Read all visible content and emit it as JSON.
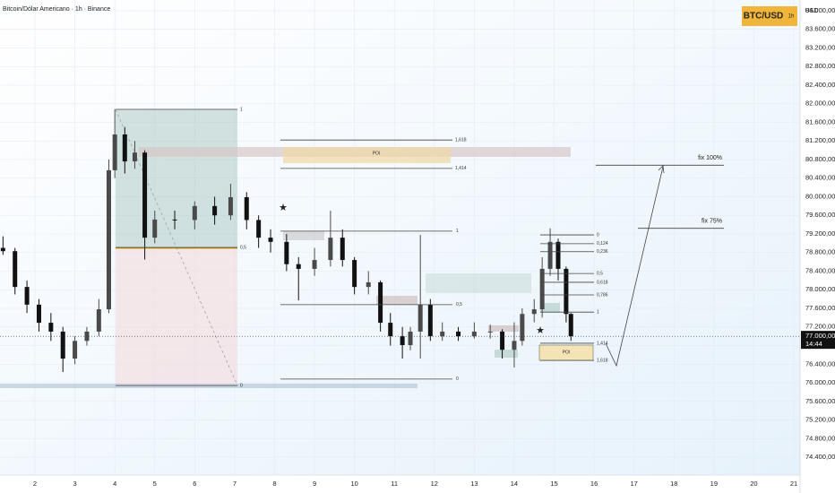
{
  "chart_data": {
    "type": "candlestick",
    "title": "Bitcoin/Dólar Americano · 1h · Binance",
    "symbol": "BTC/USD",
    "interval": "1h",
    "currency": "USD",
    "x": [
      1.2,
      1.5,
      1.8,
      2.1,
      2.4,
      2.7,
      3.0,
      3.3,
      3.6,
      3.85,
      4.0,
      4.25,
      4.5,
      4.75,
      5.0,
      5.5,
      6.0,
      6.5,
      6.9,
      7.3,
      7.6,
      7.9,
      8.3,
      8.6,
      9.0,
      9.4,
      9.7,
      10.0,
      10.35,
      10.65,
      10.9,
      11.2,
      11.4,
      11.65,
      11.9,
      12.2,
      12.6,
      13.0,
      13.4,
      13.7,
      14.0,
      14.2,
      14.5,
      14.7,
      14.9,
      15.1,
      15.3,
      15.42
    ],
    "open": [
      78900,
      78830,
      78060,
      77680,
      77290,
      77100,
      76520,
      76900,
      77100,
      77580,
      80570,
      81340,
      80760,
      80950,
      79120,
      79510,
      79500,
      79800,
      79600,
      79990,
      79500,
      79120,
      79030,
      78550,
      78450,
      78640,
      79120,
      78640,
      78060,
      78160,
      77290,
      77000,
      76810,
      77100,
      77680,
      77000,
      77100,
      77000,
      77100,
      77100,
      76710,
      76900,
      77480,
      77580,
      78450,
      79030,
      78450,
      77480
    ],
    "high": [
      79150,
      78900,
      78200,
      77800,
      77500,
      77200,
      77000,
      77200,
      77800,
      80800,
      81880,
      81500,
      81200,
      81000,
      79700,
      79700,
      79900,
      80000,
      80280,
      80100,
      79600,
      79300,
      79200,
      78700,
      78900,
      79700,
      79300,
      78700,
      78400,
      78200,
      77500,
      77200,
      77200,
      79180,
      77800,
      77300,
      77200,
      77300,
      77250,
      77150,
      77300,
      77600,
      77800,
      78700,
      79320,
      79100,
      78500,
      77500
    ],
    "low": [
      78750,
      77900,
      77500,
      77100,
      76900,
      76230,
      76400,
      76800,
      77000,
      77500,
      80400,
      80500,
      80600,
      78650,
      79000,
      79300,
      79300,
      79400,
      79500,
      79300,
      78900,
      78800,
      78400,
      77770,
      78300,
      78500,
      78500,
      77900,
      77900,
      77100,
      76800,
      76520,
      76700,
      76520,
      76900,
      76900,
      76900,
      76950,
      76950,
      76520,
      76330,
      76800,
      77300,
      77400,
      78300,
      78200,
      77300,
      76900
    ],
    "close": [
      78830,
      78060,
      77680,
      77290,
      77100,
      76520,
      76900,
      77100,
      77580,
      80570,
      81340,
      80760,
      80950,
      79120,
      79510,
      79500,
      79800,
      79600,
      79990,
      79500,
      79120,
      79030,
      78550,
      78450,
      78640,
      79120,
      78640,
      78060,
      78160,
      77290,
      77000,
      76810,
      77100,
      77680,
      77000,
      77100,
      77000,
      77100,
      77100,
      76710,
      76900,
      77480,
      77580,
      78450,
      79030,
      78450,
      77480,
      77000
    ],
    "up_color": "#4a4a4a",
    "down_color": "#111111",
    "xlim": [
      1.125,
      21.157
    ],
    "xticks": [
      2,
      3,
      4,
      5,
      6,
      7,
      8,
      9,
      10,
      11,
      12,
      13,
      14,
      15,
      16,
      17,
      18,
      19,
      20,
      21
    ],
    "ylim": [
      74015,
      84231
    ],
    "yticks": [
      {
        "value": 74400,
        "label": "74.400,00"
      },
      {
        "value": 74800,
        "label": "74.800,00"
      },
      {
        "value": 75200,
        "label": "75.200,00"
      },
      {
        "value": 75600,
        "label": "75.600,00"
      },
      {
        "value": 76000,
        "label": "76.000,00"
      },
      {
        "value": 76400,
        "label": "76.400,00"
      },
      {
        "value": 76800,
        "label": "76.800,00"
      },
      {
        "value": 77200,
        "label": "77.200,00"
      },
      {
        "value": 77600,
        "label": "77.600,00"
      },
      {
        "value": 78000,
        "label": "78.000,00"
      },
      {
        "value": 78400,
        "label": "78.400,00"
      },
      {
        "value": 78800,
        "label": "78.800,00"
      },
      {
        "value": 79200,
        "label": "79.200,00"
      },
      {
        "value": 79600,
        "label": "79.600,00"
      },
      {
        "value": 80000,
        "label": "80.000,00"
      },
      {
        "value": 80400,
        "label": "80.400,00"
      },
      {
        "value": 80800,
        "label": "80.800,00"
      },
      {
        "value": 81200,
        "label": "81.200,00"
      },
      {
        "value": 81600,
        "label": "81.600,00"
      },
      {
        "value": 82000,
        "label": "82.000,00"
      },
      {
        "value": 82400,
        "label": "82.400,00"
      },
      {
        "value": 82800,
        "label": "82.800,00"
      },
      {
        "value": 83200,
        "label": "83.200,00"
      },
      {
        "value": 83600,
        "label": "83.600,00"
      },
      {
        "value": 84000,
        "label": "84.000,00"
      }
    ],
    "grid": true,
    "last_price": {
      "value": 77000,
      "label": "77.000,00"
    },
    "countdown": "14:44",
    "fib_sets": [
      {
        "levels": [
          {
            "label": "1",
            "value": 81880
          },
          {
            "label": "0,5",
            "value": 78910
          },
          {
            "label": "0",
            "value": 75940
          }
        ]
      },
      {
        "levels": [
          {
            "label": "1,618",
            "value": 81220
          },
          {
            "label": "1,414",
            "value": 80610
          }
        ]
      },
      {
        "levels": [
          {
            "label": "1",
            "value": 79260
          },
          {
            "label": "0,5",
            "value": 77680
          },
          {
            "label": "0",
            "value": 76080
          }
        ]
      },
      {
        "levels": [
          {
            "label": "0",
            "value": 79180
          },
          {
            "label": "0,124",
            "value": 78990
          },
          {
            "label": "0,236",
            "value": 78820
          },
          {
            "label": "0,5",
            "value": 78350
          },
          {
            "label": "0,618",
            "value": 78160
          },
          {
            "label": "0,786",
            "value": 77890
          },
          {
            "label": "1",
            "value": 77520
          },
          {
            "label": "1,414",
            "value": 76850
          },
          {
            "label": "1,618",
            "value": 76480
          }
        ]
      }
    ],
    "targets": [
      {
        "label": "fix 100%",
        "value": 80680
      },
      {
        "label": "fix 75%",
        "value": 79320
      }
    ],
    "poi": [
      "POI",
      "POI"
    ]
  }
}
